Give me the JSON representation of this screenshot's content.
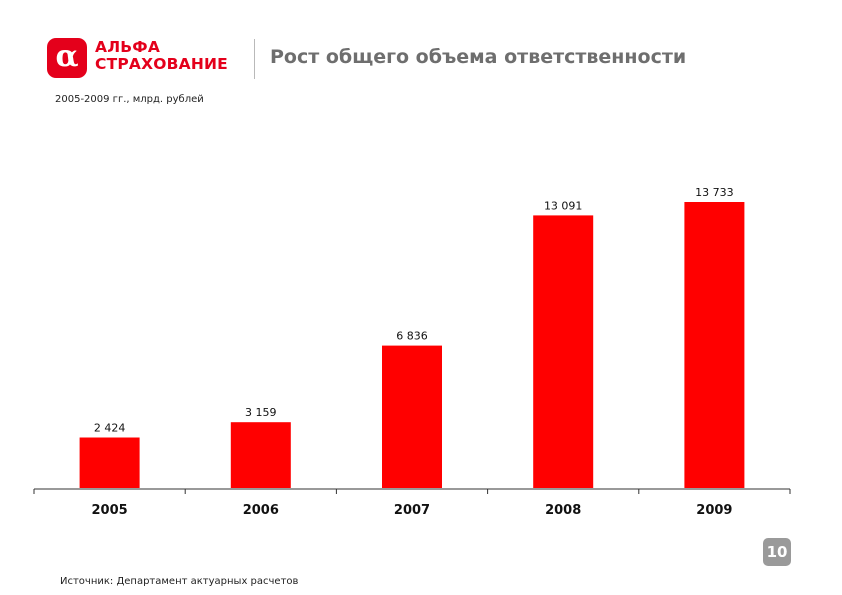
{
  "header": {
    "logo_symbol": "α",
    "logo_line1": "АЛЬФА",
    "logo_line2": "СТРАХОВАНИЕ",
    "title": "Рост общего объема ответственности",
    "subtitle": "2005-2009 гг., млрд. рублей"
  },
  "chart_data": {
    "type": "bar",
    "categories": [
      "2005",
      "2006",
      "2007",
      "2008",
      "2009"
    ],
    "values": [
      2424,
      3159,
      6836,
      13091,
      13733
    ],
    "value_labels": [
      "2 424",
      "3 159",
      "6 836",
      "13 091",
      "13 733"
    ],
    "title": "",
    "xlabel": "",
    "ylabel": "",
    "ylim": [
      0,
      13733
    ],
    "grid": false,
    "legend": "none",
    "bar_color": "#ff0000"
  },
  "footer": {
    "page_number": "10",
    "source": "Источник: Департамент актуарных расчетов"
  },
  "colors": {
    "brand": "#e4001b",
    "bar": "#ff0000",
    "title": "#6e6e6e",
    "badge": "#9a9a9a"
  }
}
